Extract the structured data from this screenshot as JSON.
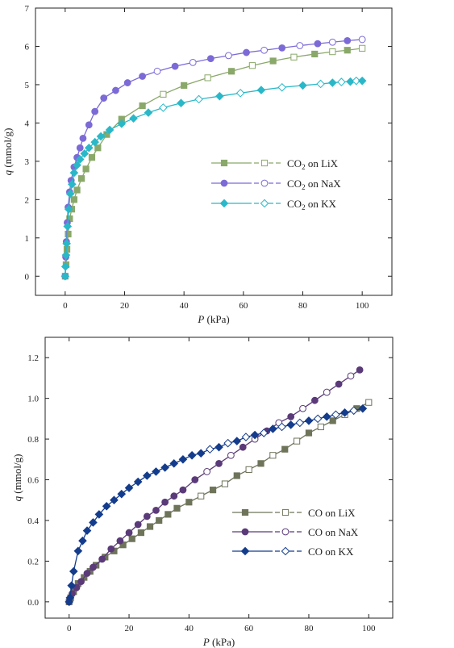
{
  "chart_data": [
    {
      "type": "line",
      "xlabel_italic": "P",
      "xlabel_unit": " (kPa)",
      "ylabel_italic": "q",
      "ylabel_unit": " (mmol/g)",
      "xlim": [
        -10,
        110
      ],
      "ylim": [
        -0.5,
        7
      ],
      "x_ticks": [
        0,
        20,
        40,
        60,
        80,
        100
      ],
      "y_ticks": [
        0,
        1,
        2,
        3,
        4,
        5,
        6,
        7
      ],
      "legend_position": "center-right",
      "series": [
        {
          "name": "CO2 on LiX",
          "legend": {
            "pre": "CO",
            "sub": "2",
            "post": " on LiX"
          },
          "marker": "square",
          "color": "#8aa86a",
          "x": [
            0,
            0.3,
            0.6,
            1,
            1.5,
            2.2,
            3,
            4,
            5.5,
            7,
            9,
            11,
            14,
            19,
            26,
            33,
            40,
            48,
            56,
            63,
            70,
            77,
            84,
            90,
            95,
            100
          ],
          "y": [
            0,
            0.3,
            0.7,
            1.1,
            1.5,
            1.75,
            2.0,
            2.25,
            2.55,
            2.8,
            3.1,
            3.35,
            3.7,
            4.1,
            4.45,
            4.75,
            4.98,
            5.18,
            5.35,
            5.5,
            5.62,
            5.72,
            5.8,
            5.86,
            5.9,
            5.95
          ]
        },
        {
          "name": "CO2 on NaX",
          "legend": {
            "pre": "CO",
            "sub": "2",
            "post": " on NaX"
          },
          "marker": "circle",
          "color": "#7c6ad6",
          "x": [
            0,
            0.2,
            0.4,
            0.7,
            1,
            1.5,
            2,
            3,
            4,
            5,
            6,
            8,
            10,
            13,
            17,
            21,
            26,
            31,
            37,
            43,
            49,
            55,
            61,
            67,
            73,
            79,
            85,
            90,
            95,
            100
          ],
          "y": [
            0,
            0.5,
            0.9,
            1.4,
            1.8,
            2.2,
            2.5,
            2.85,
            3.1,
            3.35,
            3.6,
            3.95,
            4.3,
            4.65,
            4.85,
            5.05,
            5.22,
            5.35,
            5.48,
            5.58,
            5.68,
            5.76,
            5.84,
            5.9,
            5.96,
            6.02,
            6.07,
            6.11,
            6.15,
            6.18
          ]
        },
        {
          "name": "CO2 on KX",
          "legend": {
            "pre": "CO",
            "sub": "2",
            "post": " on KX"
          },
          "marker": "diamond",
          "color": "#2ab8c8",
          "x": [
            0,
            0.1,
            0.3,
            0.5,
            0.8,
            1.2,
            1.7,
            2.3,
            3,
            4,
            5,
            6.5,
            8,
            10,
            12,
            15,
            19,
            23,
            28,
            33,
            39,
            45,
            52,
            59,
            66,
            73,
            80,
            86,
            90,
            93,
            96,
            98,
            100
          ],
          "y": [
            0,
            0.25,
            0.55,
            0.85,
            1.3,
            1.75,
            2.15,
            2.4,
            2.7,
            2.9,
            3.05,
            3.2,
            3.35,
            3.5,
            3.65,
            3.82,
            3.98,
            4.12,
            4.27,
            4.4,
            4.52,
            4.62,
            4.7,
            4.78,
            4.86,
            4.93,
            4.98,
            5.02,
            5.05,
            5.07,
            5.08,
            5.1,
            5.1
          ]
        }
      ]
    },
    {
      "type": "line",
      "xlabel_italic": "P",
      "xlabel_unit": " (kPa)",
      "ylabel_italic": "q",
      "ylabel_unit": " (mmol/g)",
      "xlim": [
        -8,
        108
      ],
      "ylim": [
        -0.08,
        1.3
      ],
      "x_ticks": [
        0,
        20,
        40,
        60,
        80,
        100
      ],
      "y_ticks": [
        0.0,
        0.2,
        0.4,
        0.6,
        0.8,
        1.0,
        1.2
      ],
      "y_tick_labels": [
        "0.0",
        "0.2",
        "0.4",
        "0.6",
        "0.8",
        "1.0",
        "1.2"
      ],
      "legend_position": "bottom-right",
      "series": [
        {
          "name": "CO on LiX",
          "legend": {
            "pre": "CO on LiX",
            "sub": "",
            "post": ""
          },
          "marker": "square",
          "color": "#6e745a",
          "x": [
            0,
            0.5,
            1.5,
            3,
            5,
            7,
            9,
            12,
            15,
            18,
            21,
            24,
            27,
            30,
            33,
            36,
            40,
            44,
            48,
            52,
            56,
            60,
            64,
            68,
            72,
            76,
            80,
            84,
            88,
            92,
            96,
            100
          ],
          "y": [
            0,
            0.02,
            0.05,
            0.09,
            0.12,
            0.15,
            0.18,
            0.22,
            0.25,
            0.28,
            0.31,
            0.34,
            0.37,
            0.4,
            0.43,
            0.46,
            0.49,
            0.52,
            0.55,
            0.58,
            0.62,
            0.65,
            0.68,
            0.72,
            0.75,
            0.79,
            0.83,
            0.86,
            0.89,
            0.92,
            0.95,
            0.98
          ]
        },
        {
          "name": "CO on NaX",
          "legend": {
            "pre": "CO on NaX",
            "sub": "",
            "post": ""
          },
          "marker": "circle",
          "color": "#5a3a78",
          "x": [
            0,
            1,
            2.5,
            4,
            6,
            8,
            11,
            14,
            17,
            20,
            23,
            26,
            29,
            32,
            35,
            38,
            42,
            46,
            50,
            54,
            58,
            62,
            66,
            70,
            74,
            78,
            82,
            86,
            90,
            94,
            97
          ],
          "y": [
            0,
            0.04,
            0.07,
            0.1,
            0.14,
            0.17,
            0.21,
            0.26,
            0.3,
            0.34,
            0.38,
            0.42,
            0.45,
            0.49,
            0.52,
            0.55,
            0.6,
            0.64,
            0.68,
            0.72,
            0.76,
            0.8,
            0.84,
            0.88,
            0.91,
            0.95,
            0.99,
            1.03,
            1.07,
            1.11,
            1.14
          ]
        },
        {
          "name": "CO on KX",
          "legend": {
            "pre": "CO on KX",
            "sub": "",
            "post": ""
          },
          "marker": "diamond",
          "color": "#143c8c",
          "x": [
            0,
            0.3,
            0.8,
            1.5,
            3,
            4.5,
            6,
            8,
            10,
            12.5,
            15,
            17.5,
            20,
            23,
            26,
            29,
            32,
            35,
            38,
            41,
            44,
            47,
            50,
            53,
            56,
            59,
            62,
            65,
            68,
            71,
            74,
            77,
            80,
            83,
            86,
            89,
            92,
            95,
            98
          ],
          "y": [
            0,
            0.02,
            0.08,
            0.15,
            0.25,
            0.3,
            0.35,
            0.39,
            0.43,
            0.47,
            0.5,
            0.53,
            0.56,
            0.59,
            0.62,
            0.64,
            0.66,
            0.68,
            0.7,
            0.72,
            0.73,
            0.75,
            0.76,
            0.78,
            0.79,
            0.81,
            0.82,
            0.83,
            0.85,
            0.86,
            0.87,
            0.88,
            0.89,
            0.9,
            0.91,
            0.92,
            0.93,
            0.94,
            0.95
          ]
        }
      ]
    }
  ]
}
